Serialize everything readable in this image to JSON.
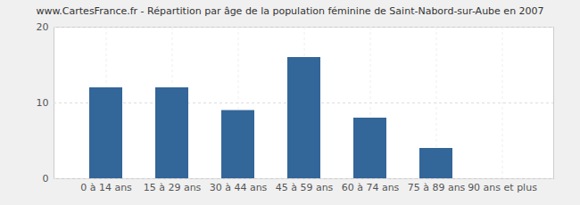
{
  "chart_data": {
    "type": "bar",
    "title": "www.CartesFrance.fr - Répartition par âge de la population féminine de Saint-Nabord-sur-Aube en 2007",
    "categories": [
      "0 à 14 ans",
      "15 à 29 ans",
      "30 à 44 ans",
      "45 à 59 ans",
      "60 à 74 ans",
      "75 à 89 ans",
      "90 ans et plus"
    ],
    "values": [
      12,
      12,
      9,
      16,
      8,
      4,
      0
    ],
    "color": "#336699",
    "ylim": [
      0,
      20
    ],
    "yticks": [
      0,
      10,
      20
    ],
    "grid": true
  }
}
